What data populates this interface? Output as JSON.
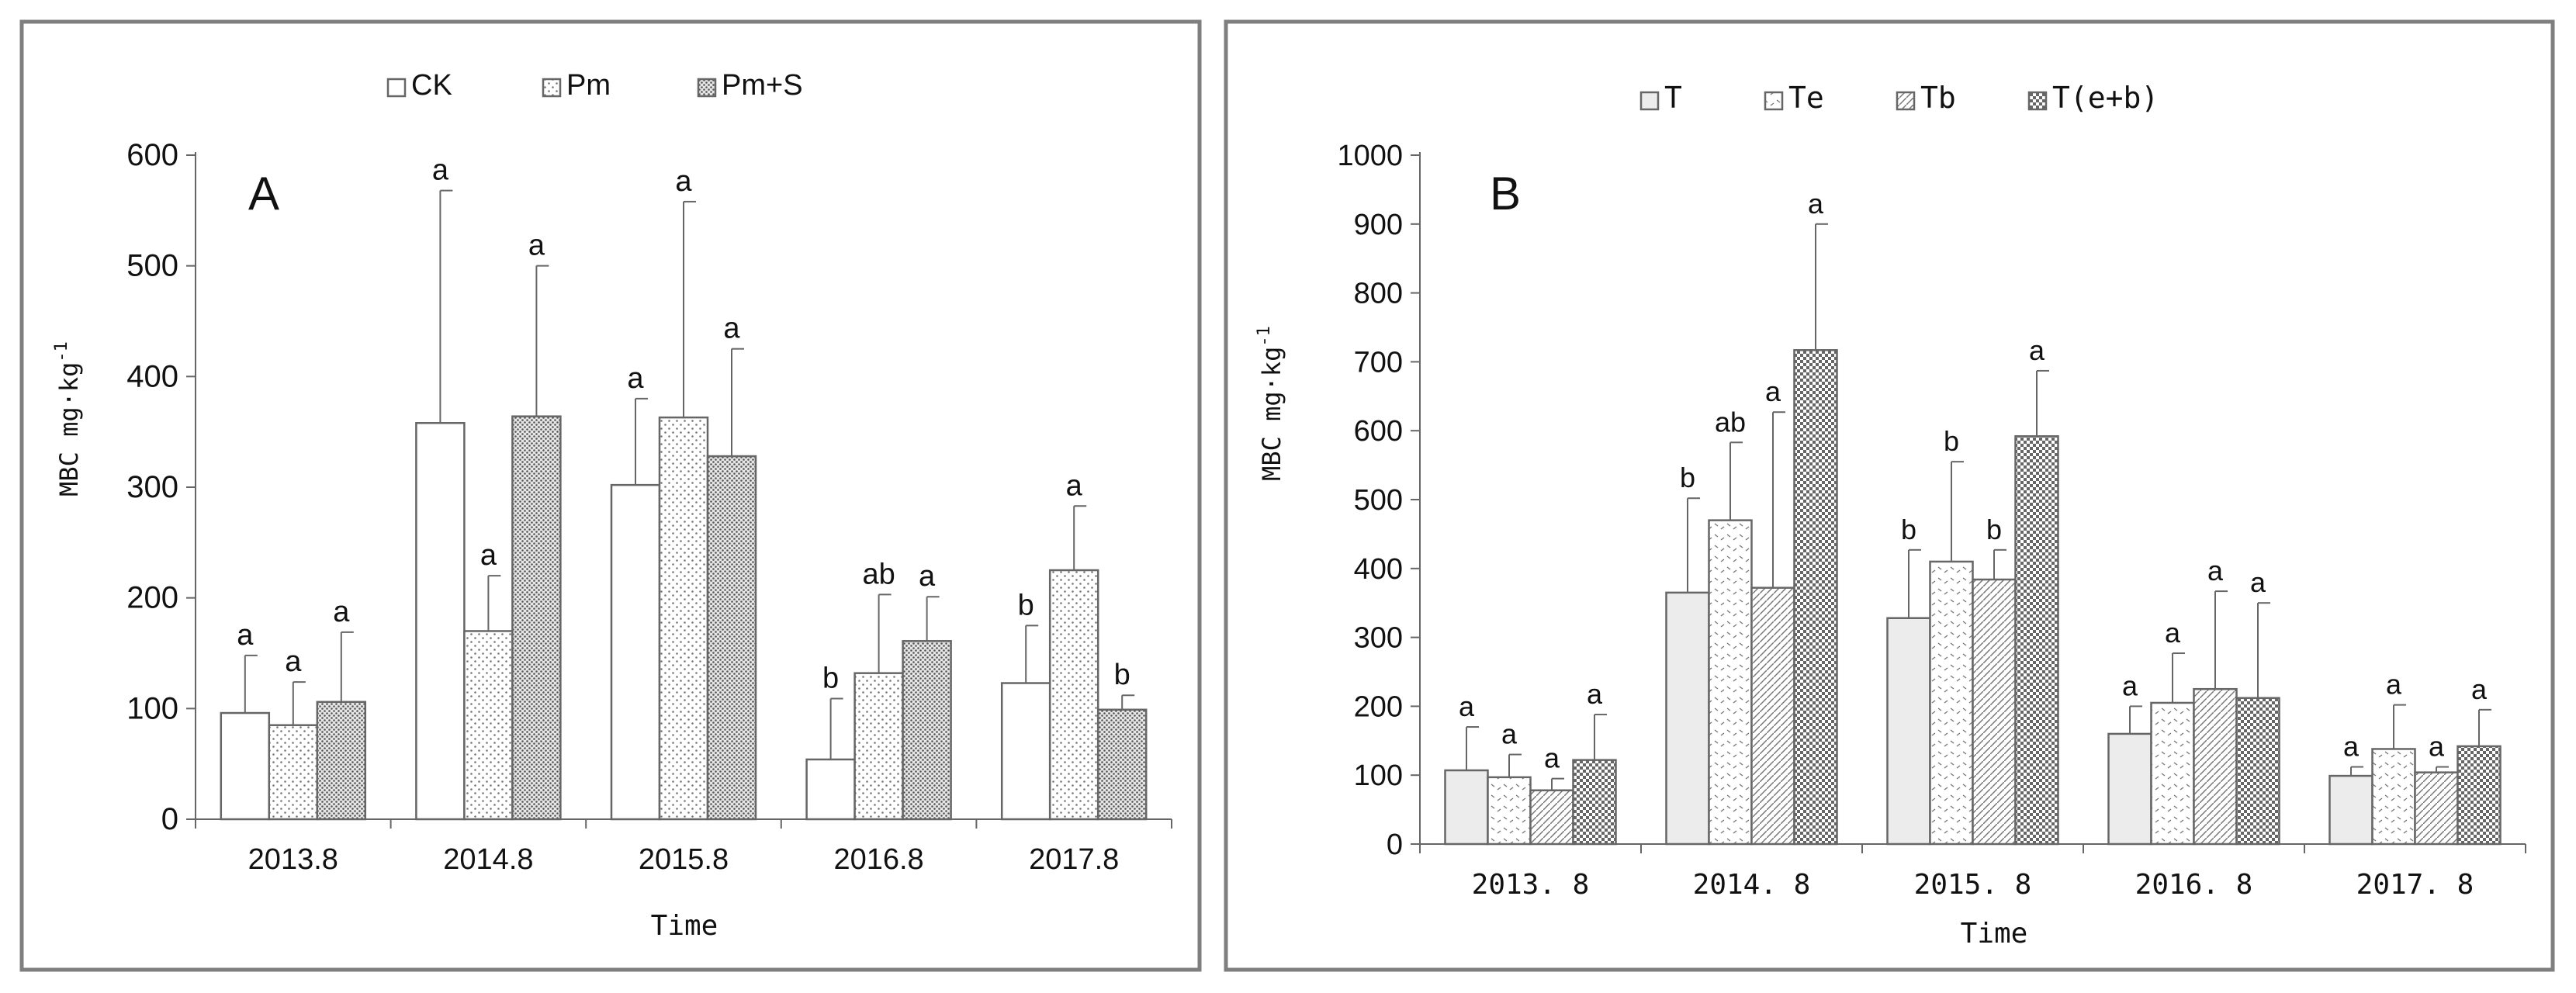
{
  "chart_data": [
    {
      "type": "bar",
      "panel_label": "A",
      "categories": [
        "2013.8",
        "2014.8",
        "2015.8",
        "2016.8",
        "2017.8"
      ],
      "series": [
        {
          "name": "CK",
          "values": [
            96,
            358,
            302,
            54,
            123
          ],
          "errors": [
            52,
            210,
            78,
            55,
            52
          ],
          "letters": [
            "a",
            "a",
            "a",
            "b",
            "b"
          ],
          "pattern": "blank"
        },
        {
          "name": "Pm",
          "values": [
            85,
            170,
            363,
            132,
            225
          ],
          "errors": [
            39,
            50,
            195,
            71,
            58
          ],
          "letters": [
            "a",
            "a",
            "a",
            "ab",
            "a"
          ],
          "pattern": "dots"
        },
        {
          "name": "Pm+S",
          "values": [
            106,
            364,
            328,
            161,
            99
          ],
          "errors": [
            63,
            136,
            97,
            40,
            13
          ],
          "letters": [
            "a",
            "a",
            "a",
            "a",
            "b"
          ],
          "pattern": "dense-dots"
        }
      ],
      "ylabel": "MBC mg·kg",
      "ylabel_sup": "-1",
      "xlabel": "Time",
      "ylim": [
        0,
        600
      ],
      "yticks": [
        "0",
        "100",
        "200",
        "300",
        "400",
        "500",
        "600"
      ],
      "legend": "top-center"
    },
    {
      "type": "bar",
      "panel_label": "B",
      "categories": [
        "2013. 8",
        "2014. 8",
        "2015. 8",
        "2016. 8",
        "2017. 8"
      ],
      "series": [
        {
          "name": "T",
          "values": [
            107,
            365,
            328,
            160,
            99
          ],
          "errors": [
            63,
            137,
            99,
            40,
            13
          ],
          "letters": [
            "a",
            "b",
            "b",
            "a",
            "a"
          ],
          "pattern": "light-fill"
        },
        {
          "name": "Te",
          "values": [
            97,
            470,
            410,
            205,
            138
          ],
          "errors": [
            33,
            113,
            145,
            72,
            64
          ],
          "letters": [
            "a",
            "ab",
            "b",
            "a",
            "a"
          ],
          "pattern": "dashes"
        },
        {
          "name": "Tb",
          "values": [
            78,
            372,
            384,
            225,
            104
          ],
          "errors": [
            17,
            255,
            43,
            142,
            8
          ],
          "letters": [
            "a",
            "a",
            "b",
            "a",
            "a"
          ],
          "pattern": "diagonal"
        },
        {
          "name": "T(e+b)",
          "values": [
            122,
            717,
            592,
            212,
            142
          ],
          "errors": [
            66,
            183,
            95,
            138,
            53
          ],
          "letters": [
            "a",
            "a",
            "a",
            "a",
            "a"
          ],
          "pattern": "checker"
        }
      ],
      "ylabel": "MBC mg·kg",
      "ylabel_sup": "-1",
      "xlabel": "Time",
      "ylim": [
        0,
        1000
      ],
      "yticks": [
        "0",
        "100",
        "200",
        "300",
        "400",
        "500",
        "600",
        "700",
        "800",
        "900",
        "1000"
      ],
      "legend": "top-center"
    }
  ]
}
